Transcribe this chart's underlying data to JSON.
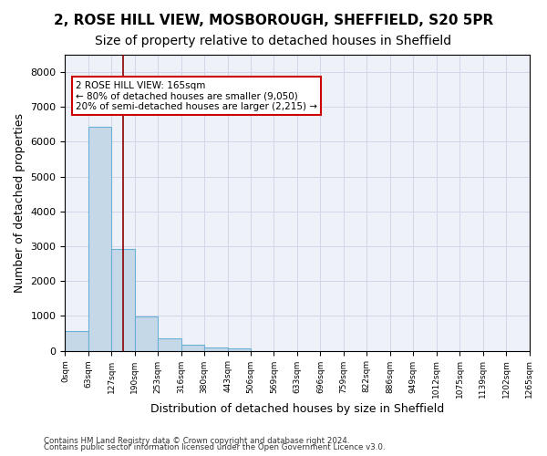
{
  "title1": "2, ROSE HILL VIEW, MOSBOROUGH, SHEFFIELD, S20 5PR",
  "title2": "Size of property relative to detached houses in Sheffield",
  "xlabel": "Distribution of detached houses by size in Sheffield",
  "ylabel": "Number of detached properties",
  "bar_values": [
    570,
    6430,
    2910,
    990,
    360,
    175,
    105,
    75,
    0,
    0,
    0,
    0,
    0,
    0,
    0,
    0,
    0,
    0,
    0,
    0
  ],
  "bar_labels": [
    "0sqm",
    "63sqm",
    "127sqm",
    "190sqm",
    "253sqm",
    "316sqm",
    "380sqm",
    "443sqm",
    "506sqm",
    "569sqm",
    "633sqm",
    "696sqm",
    "759sqm",
    "822sqm",
    "886sqm",
    "949sqm",
    "1012sqm",
    "1075sqm",
    "1139sqm",
    "1202sqm",
    "1265sqm"
  ],
  "bar_color": "#c5d8e8",
  "bar_edge_color": "#6baed6",
  "vline_x": 2.5,
  "vline_color": "#8b0000",
  "ylim": [
    0,
    8500
  ],
  "yticks": [
    0,
    1000,
    2000,
    3000,
    4000,
    5000,
    6000,
    7000,
    8000
  ],
  "annotation_text": "2 ROSE HILL VIEW: 165sqm\n← 80% of detached houses are smaller (9,050)\n20% of semi-detached houses are larger (2,215) →",
  "annotation_box_color": "#ffffff",
  "annotation_border_color": "#cc0000",
  "footer1": "Contains HM Land Registry data © Crown copyright and database right 2024.",
  "footer2": "Contains public sector information licensed under the Open Government Licence v3.0.",
  "grid_color": "#d0d8e8",
  "bg_color": "#eef2f8",
  "title1_fontsize": 11,
  "title2_fontsize": 10,
  "xlabel_fontsize": 9,
  "ylabel_fontsize": 9
}
